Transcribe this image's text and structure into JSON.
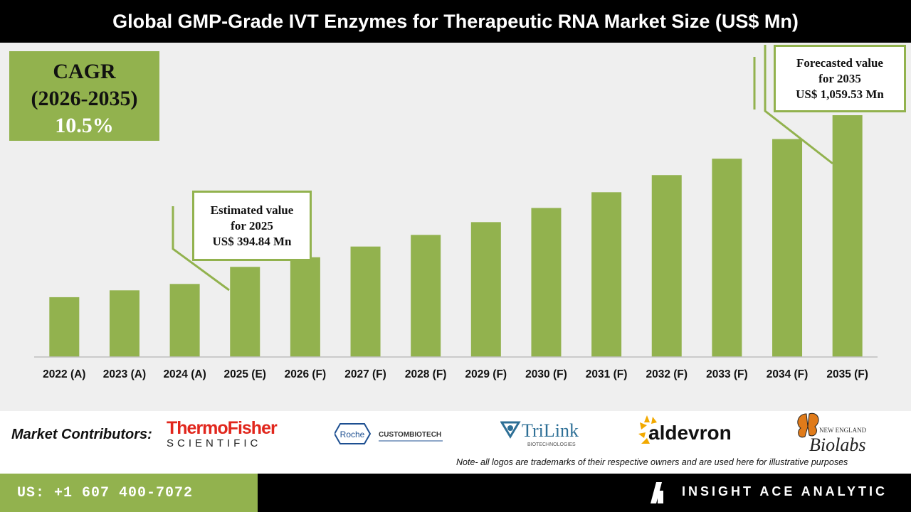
{
  "title": "Global GMP-Grade IVT Enzymes for Therapeutic RNA Market Size (US$ Mn)",
  "cagr": {
    "line1": "CAGR",
    "line2": "(2026-2035)",
    "value": "10.5%"
  },
  "callout_2025": {
    "line1": "Estimated value",
    "line2": "for 2025",
    "line3": "US$ 394.84 Mn"
  },
  "callout_2035": {
    "line1": "Forecasted value",
    "line2": "for 2035",
    "line3": "US$ 1,059.53 Mn"
  },
  "chart_data": {
    "type": "bar",
    "categories": [
      "2022 (A)",
      "2023 (A)",
      "2024 (A)",
      "2025 (E)",
      "2026 (F)",
      "2027 (F)",
      "2028 (F)",
      "2029 (F)",
      "2030 (F)",
      "2031 (F)",
      "2032 (F)",
      "2033 (F)",
      "2034 (F)",
      "2035 (F)"
    ],
    "values": [
      262,
      292,
      320,
      394.84,
      437,
      484,
      535,
      591,
      653,
      722,
      797,
      869,
      955,
      1059.53
    ],
    "ylim": [
      0,
      1200
    ],
    "bar_color": "#92b24e",
    "grid": false,
    "legend": "none",
    "xlabel": "",
    "ylabel": ""
  },
  "contributors": {
    "label": "Market Contributors:",
    "thermo": {
      "line1": "ThermoFisher",
      "line2": "SCIENTIFIC"
    },
    "roche": {
      "badge": "Roche",
      "text": "CUSTOMBIOTECH"
    },
    "trilink": {
      "name": "TriLink",
      "sub": "BIOTECHNOLOGIES"
    },
    "aldevron": {
      "name": "aldevron"
    },
    "neb": {
      "line1": "NEW ENGLAND",
      "line2": "Biolabs"
    }
  },
  "note": "Note- all logos are trademarks of their respective owners and are used here for illustrative purposes",
  "footer": {
    "phone": "US: +1 607 400-7072",
    "brand": "INSIGHT ACE ANALYTIC"
  },
  "colors": {
    "accent_green": "#92b24e",
    "background": "#efefef",
    "title_bg": "#000000"
  }
}
